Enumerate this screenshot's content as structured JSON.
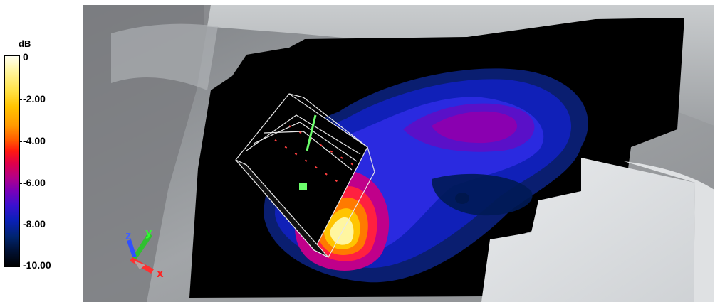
{
  "legend": {
    "unit": "dB",
    "ticks": [
      "0",
      "-2.00",
      "-4.00",
      "-6.00",
      "-8.00",
      "-10.00"
    ]
  },
  "axes": {
    "x": "x",
    "y": "y",
    "z": "z"
  },
  "colors": {
    "scale_top": "#fffff0",
    "scale_bottom": "#000000",
    "x_axis": "#ff2020",
    "y_axis": "#30ff30",
    "z_axis": "#4060ff",
    "source_marker": "#6cff6c"
  }
}
